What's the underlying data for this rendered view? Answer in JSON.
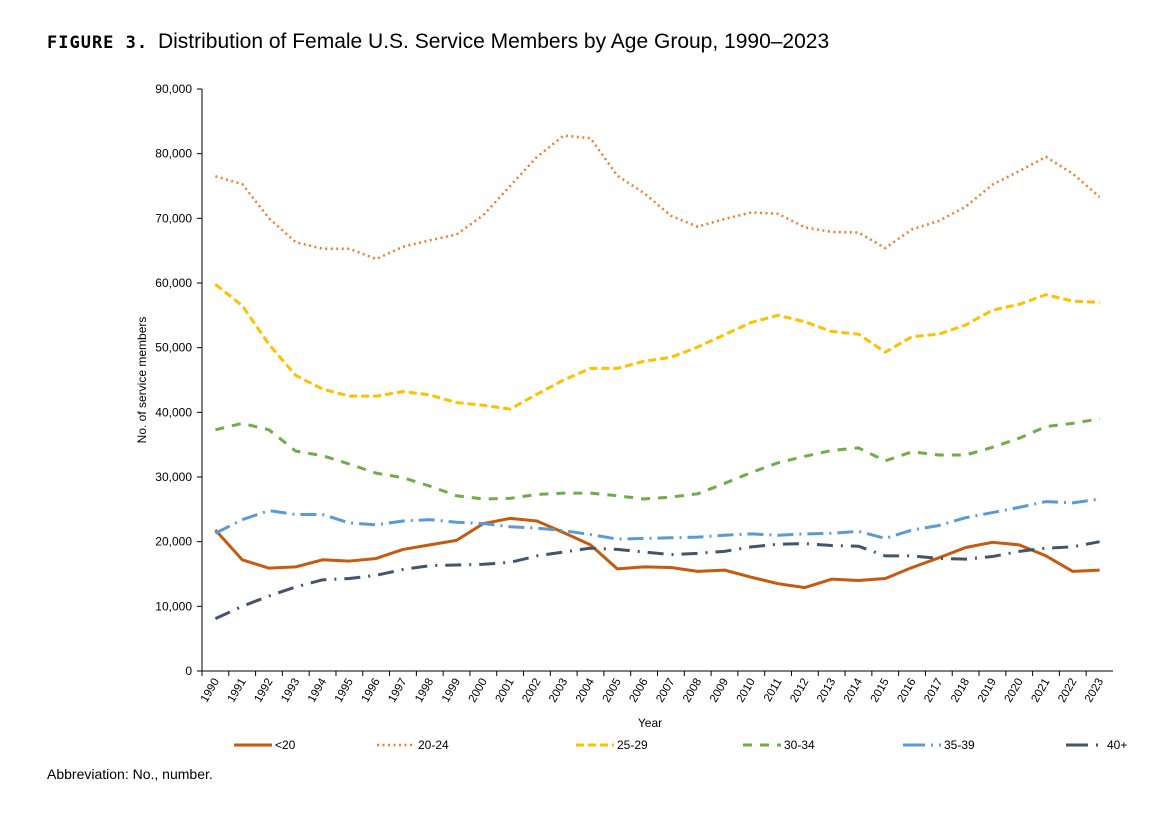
{
  "figure_label": "FIGURE 3.",
  "footnote": "Abbreviation: No., number.",
  "chart_data": {
    "type": "line",
    "title": "Distribution of Female U.S. Service Members by Age Group, 1990–2023",
    "xlabel": "Year",
    "ylabel": "No. of service members",
    "ylim": [
      0,
      90000
    ],
    "yticks": [
      "0",
      "10,000",
      "20,000",
      "30,000",
      "40,000",
      "50,000",
      "60,000",
      "70,000",
      "80,000",
      "90,000"
    ],
    "grid": false,
    "legend": "bottom",
    "x": [
      "1990",
      "1991",
      "1992",
      "1993",
      "1994",
      "1995",
      "1996",
      "1997",
      "1998",
      "1999",
      "2000",
      "2001",
      "2002",
      "2003",
      "2004",
      "2005",
      "2006",
      "2007",
      "2008",
      "2009",
      "2010",
      "2011",
      "2012",
      "2013",
      "2014",
      "2015",
      "2016",
      "2017",
      "2018",
      "2019",
      "2020",
      "2021",
      "2022",
      "2023"
    ],
    "series": [
      {
        "name": "<20",
        "color": "#C55A11",
        "style": "solid",
        "values": [
          21800,
          17200,
          15900,
          16100,
          17200,
          17000,
          17400,
          18800,
          19500,
          20200,
          22800,
          23600,
          23200,
          21400,
          19500,
          15800,
          16100,
          16000,
          15400,
          15600,
          14500,
          13500,
          12900,
          14200,
          14000,
          14300,
          16000,
          17500,
          19100,
          19900,
          19500,
          17800,
          15400,
          15600
        ]
      },
      {
        "name": "20-24",
        "color": "#ED7D31",
        "style": "dotted",
        "values": [
          76500,
          75300,
          70000,
          66300,
          65300,
          65300,
          63700,
          65600,
          66600,
          67500,
          70500,
          75000,
          79500,
          82800,
          82400,
          76600,
          73900,
          70400,
          68700,
          69900,
          70900,
          70700,
          68600,
          67900,
          67800,
          65400,
          68300,
          69600,
          71800,
          75200,
          77300,
          79500,
          76900,
          73300
        ]
      },
      {
        "name": "25-29",
        "color": "#FFC000",
        "style": "dash",
        "values": [
          59800,
          56500,
          50500,
          45700,
          43600,
          42500,
          42500,
          43200,
          42700,
          41500,
          41100,
          40500,
          42800,
          45000,
          46800,
          46800,
          47900,
          48500,
          50100,
          52000,
          53900,
          55000,
          54000,
          52500,
          52100,
          49300,
          51700,
          52100,
          53500,
          55800,
          56700,
          58200,
          57200,
          57000
        ]
      },
      {
        "name": "30-34",
        "color": "#70AD47",
        "style": "longdash",
        "values": [
          37300,
          38300,
          37300,
          34000,
          33300,
          32000,
          30600,
          29900,
          28600,
          27100,
          26600,
          26700,
          27300,
          27500,
          27500,
          27100,
          26600,
          26900,
          27400,
          29000,
          30700,
          32200,
          33200,
          34100,
          34500,
          32500,
          33900,
          33400,
          33400,
          34600,
          36000,
          37800,
          38300,
          39000
        ]
      },
      {
        "name": "35-39",
        "color": "#5B9BD5",
        "style": "dashdot-long",
        "values": [
          21300,
          23400,
          24800,
          24200,
          24200,
          22900,
          22600,
          23200,
          23400,
          23000,
          22800,
          22300,
          22100,
          21700,
          21100,
          20400,
          20500,
          20600,
          20700,
          21000,
          21200,
          21000,
          21200,
          21300,
          21600,
          20500,
          21800,
          22500,
          23700,
          24500,
          25300,
          26200,
          26000,
          26600
        ]
      },
      {
        "name": "40+",
        "color": "#44546A",
        "style": "dashdot",
        "values": [
          8100,
          10000,
          11600,
          13000,
          14100,
          14300,
          14800,
          15700,
          16300,
          16400,
          16500,
          16800,
          17800,
          18400,
          19000,
          18800,
          18400,
          18000,
          18200,
          18500,
          19200,
          19600,
          19700,
          19400,
          19300,
          17800,
          17800,
          17400,
          17300,
          17700,
          18500,
          19000,
          19200,
          20000
        ]
      }
    ]
  }
}
